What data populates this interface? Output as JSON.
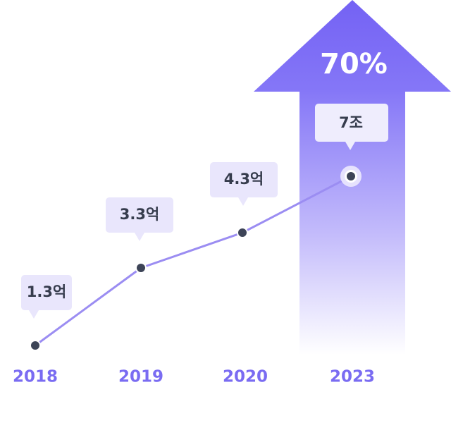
{
  "growth": "70%",
  "points": [
    {
      "year": "2018",
      "label": "1.3억"
    },
    {
      "year": "2019",
      "label": "3.3억"
    },
    {
      "year": "2020",
      "label": "4.3억"
    },
    {
      "year": "2023",
      "label": "7조"
    }
  ]
}
